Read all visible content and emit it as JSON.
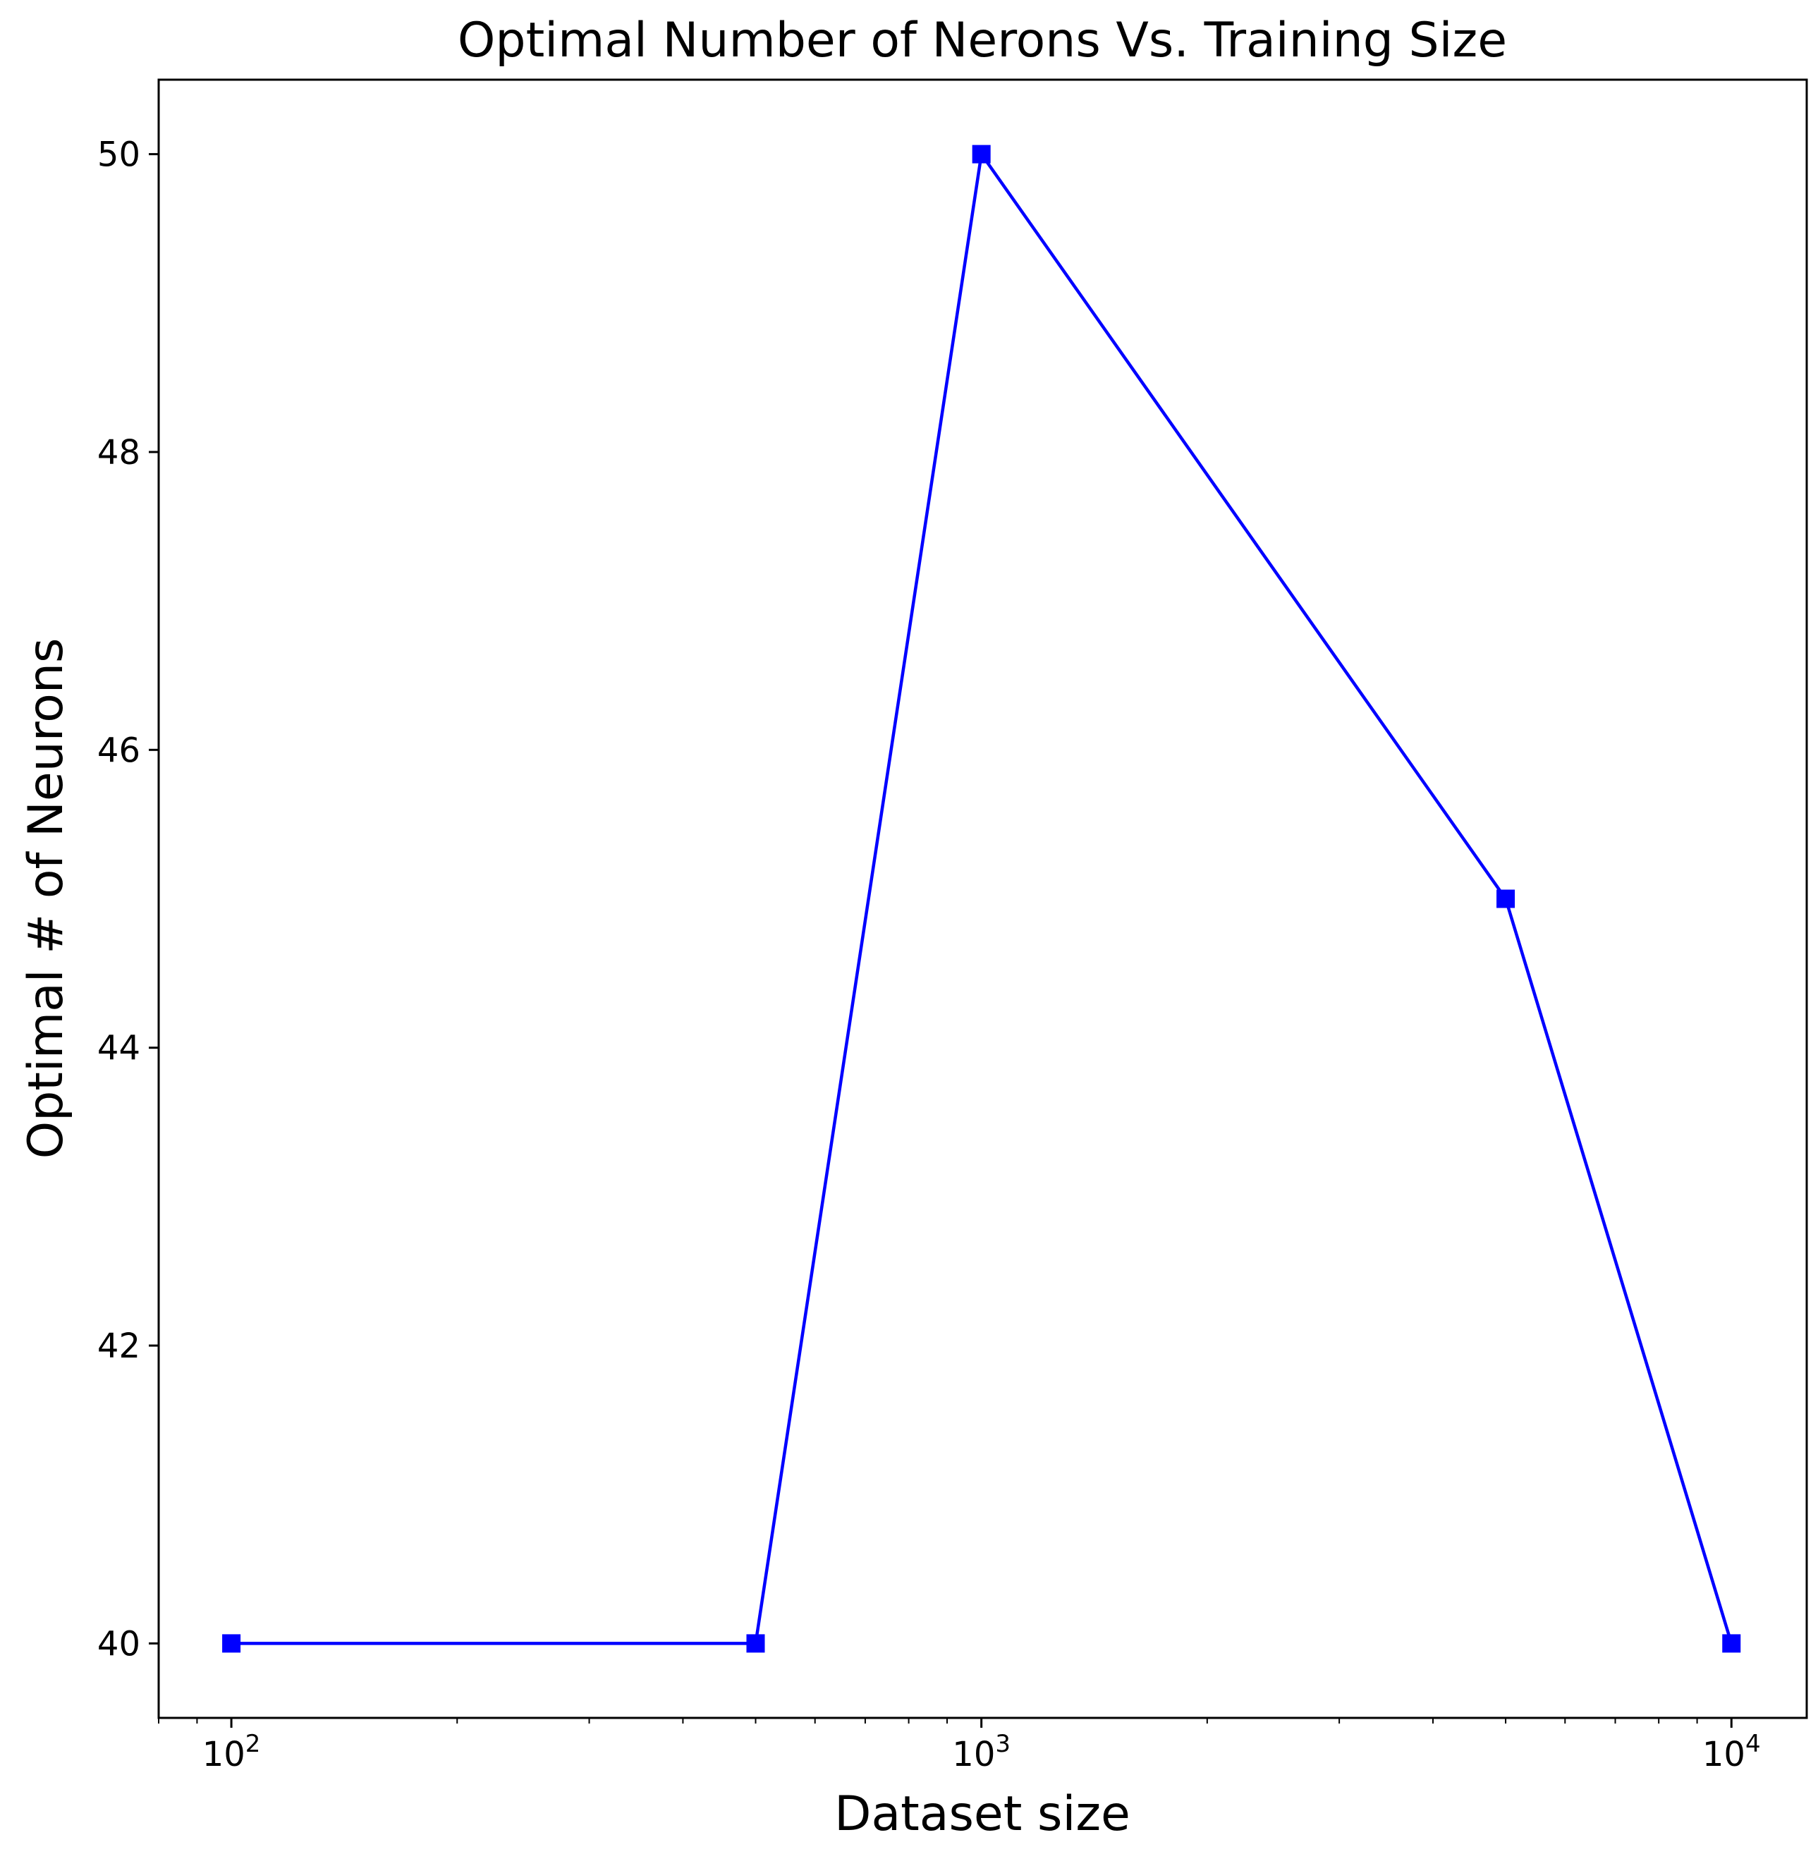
{
  "chart_data": {
    "type": "line",
    "title": "Optimal Number of Nerons Vs. Training Size",
    "xlabel": "Dataset size",
    "ylabel": "Optimal # of Neurons",
    "xscale": "log",
    "xlim": [
      80,
      12600
    ],
    "ylim": [
      39.5,
      50.5
    ],
    "grid": false,
    "series": [
      {
        "color": "#0000ff",
        "marker": "square",
        "x": [
          100,
          500,
          1000,
          5000,
          10000
        ],
        "y": [
          40,
          40,
          50,
          45,
          40
        ]
      }
    ],
    "x_major_ticks": [
      {
        "value": 100,
        "base": "10",
        "exp": "2"
      },
      {
        "value": 1000,
        "base": "10",
        "exp": "3"
      },
      {
        "value": 10000,
        "base": "10",
        "exp": "4"
      }
    ],
    "y_ticks": [
      {
        "value": 40,
        "label": "40"
      },
      {
        "value": 42,
        "label": "42"
      },
      {
        "value": 44,
        "label": "44"
      },
      {
        "value": 46,
        "label": "46"
      },
      {
        "value": 48,
        "label": "48"
      },
      {
        "value": 50,
        "label": "50"
      }
    ]
  }
}
